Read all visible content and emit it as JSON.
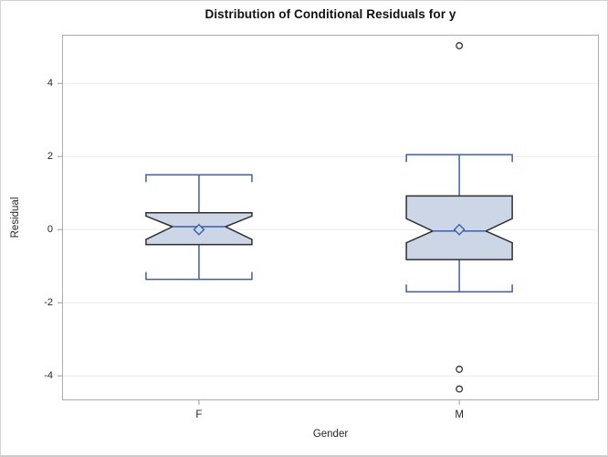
{
  "chart_data": {
    "type": "boxplot",
    "title": "Distribution of Conditional Residuals for y",
    "xlabel": "Gender",
    "ylabel": "Residual",
    "ylim": [
      -4.67,
      5.33
    ],
    "yticks": [
      4,
      2,
      0,
      -2,
      -4
    ],
    "grid": "horizontal",
    "categories": [
      "F",
      "M"
    ],
    "category_positions": [
      0.255,
      0.74
    ],
    "notched": true,
    "series": [
      {
        "category": "F",
        "whisker_low": -1.36,
        "q1": -0.41,
        "median": 0.08,
        "q3": 0.46,
        "whisker_high": 1.5,
        "mean": 0.0,
        "notch_low": -0.27,
        "notch_high": 0.37,
        "outliers": []
      },
      {
        "category": "M",
        "whisker_low": -1.7,
        "q1": -0.82,
        "median": -0.04,
        "q3": 0.92,
        "whisker_high": 2.05,
        "mean": 0.0,
        "notch_low": -0.36,
        "notch_high": 0.3,
        "outliers": [
          5.03,
          -3.82,
          -4.36
        ]
      }
    ],
    "colors": {
      "box_fill": "#ccd6e6",
      "box_outline": "#2f2f2f",
      "whisker_blue": "#3d5fa8",
      "gridline": "#ebebeb",
      "frame": "#ababab",
      "tick": "#9a9a9a",
      "text": "#262626",
      "outlier_outline": "#2f2f2f",
      "background": "#ffffff",
      "figure_border": "#d4d4d4"
    }
  }
}
